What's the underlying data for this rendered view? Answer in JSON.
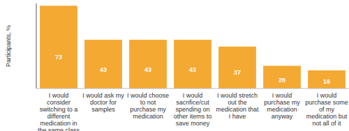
{
  "chart_data": {
    "type": "bar",
    "y_label": "Participants, %",
    "categories": [
      "I would consider switching to a different medication in the same class",
      "I would ask my doctor for samples",
      "I would choose to not purchase my medication",
      "I would sacrifice/cut spending on other items to save money",
      "I would stretch out the medication that I have",
      "I would purchase my medication anyway",
      "I would purchase some of my medication but not all of it"
    ],
    "values": [
      73,
      43,
      43,
      43,
      37,
      20,
      16
    ],
    "color": "#f4a933",
    "ylim": [
      0,
      75
    ],
    "grid": false,
    "data_labels": true,
    "tick_labels": "x"
  }
}
